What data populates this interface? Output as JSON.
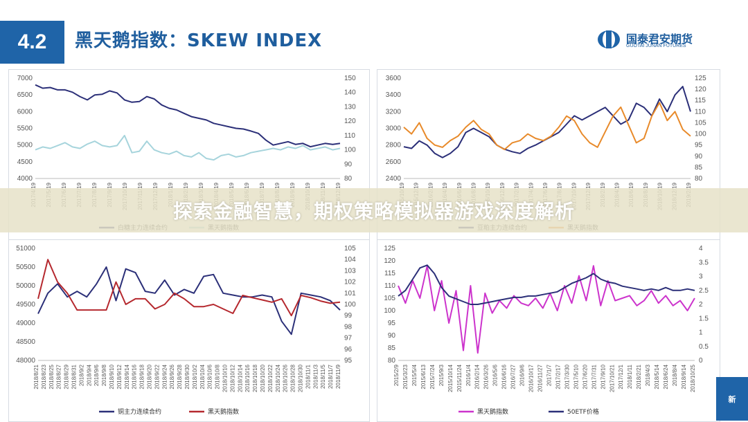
{
  "header": {
    "section_number": "4.2",
    "title": "黑天鹅指数：SKEW INDEX",
    "logo_cn": "国泰君安期货",
    "logo_en": "GUOTAI JUNAN FUTURES"
  },
  "banner": {
    "text": "探索金融智慧，期权策略模拟器游戏深度解析"
  },
  "corner": {
    "text": "新"
  },
  "colors": {
    "navy": "#2b2f78",
    "lightblue": "#a6d4dc",
    "orange": "#e88a2a",
    "red": "#b5282e",
    "magenta": "#cc33cc",
    "brand": "#1f64a8"
  },
  "chart_data": [
    {
      "type": "line",
      "y_left_ticks": [
        "7000",
        "6500",
        "6000",
        "5500",
        "5000",
        "4500",
        "4000"
      ],
      "y_right_ticks": [
        "150",
        "140",
        "130",
        "120",
        "110",
        "100",
        "90",
        "80"
      ],
      "ylim_left": [
        4000,
        7000
      ],
      "ylim_right": [
        80,
        150
      ],
      "x_labels": [
        "2017/4/19",
        "2017/5/19",
        "2017/6/19",
        "2017/7/19",
        "2017/8/19",
        "2017/9/19",
        "2017/10/19",
        "2017/11/19",
        "2017/12/19",
        "2018/1/19",
        "2018/2/19",
        "2018/3/19",
        "2018/4/19",
        "2018/5/19",
        "2018/6/19",
        "2018/7/19",
        "2018/8/19",
        "2018/9/19",
        "2018/10/19",
        "2018/11/19",
        "2018/12/19"
      ],
      "series": [
        {
          "name": "白糖主力连续合约",
          "axis": "left",
          "color": "#2b2f78",
          "values": [
            6800,
            6700,
            6720,
            6650,
            6650,
            6580,
            6450,
            6350,
            6500,
            6520,
            6620,
            6560,
            6350,
            6280,
            6300,
            6450,
            6380,
            6200,
            6100,
            6050,
            5950,
            5850,
            5800,
            5750,
            5650,
            5600,
            5550,
            5500,
            5480,
            5420,
            5350,
            5150,
            5000,
            5050,
            5100,
            5020,
            5050,
            4950,
            5000,
            5050,
            5020,
            5050
          ]
        },
        {
          "name": "黑天鹅指数",
          "axis": "right",
          "color": "#a6d4dc",
          "values": [
            100,
            102,
            101,
            103,
            105,
            102,
            101,
            104,
            106,
            103,
            102,
            103,
            110,
            98,
            99,
            106,
            100,
            98,
            97,
            99,
            96,
            95,
            98,
            94,
            93,
            96,
            97,
            95,
            96,
            98,
            99,
            100,
            101,
            100,
            102,
            101,
            103,
            100,
            101,
            102,
            100,
            101
          ]
        }
      ],
      "legend": "bottom"
    },
    {
      "type": "line",
      "y_left_ticks": [
        "3600",
        "3400",
        "3200",
        "3000",
        "2800",
        "2600",
        "2400"
      ],
      "y_right_ticks": [
        "125",
        "120",
        "115",
        "110",
        "105",
        "100",
        "95",
        "90",
        "85",
        "80"
      ],
      "ylim_left": [
        2400,
        3600
      ],
      "ylim_right": [
        80,
        125
      ],
      "x_labels": [
        "2015/10/19",
        "2015/12/19",
        "2016/2/19",
        "2016/4/19",
        "2016/6/19",
        "2016/8/19",
        "2016/10/19",
        "2016/12/19",
        "2017/2/19",
        "2017/4/19",
        "2017/6/19",
        "2017/8/19",
        "2017/10/19",
        "2017/12/19",
        "2018/2/19",
        "2018/4/19",
        "2018/6/19",
        "2018/8/19",
        "2018/10/19",
        "2018/12/19",
        "2019/2/19"
      ],
      "series": [
        {
          "name": "豆粕主力连续合约",
          "axis": "left",
          "color": "#2b2f78",
          "values": [
            2780,
            2760,
            2850,
            2800,
            2700,
            2650,
            2700,
            2780,
            2950,
            3000,
            2950,
            2900,
            2800,
            2750,
            2720,
            2700,
            2760,
            2800,
            2850,
            2900,
            2950,
            3050,
            3150,
            3100,
            3150,
            3200,
            3250,
            3150,
            3050,
            3100,
            3300,
            3250,
            3150,
            3350,
            3200,
            3400,
            3500,
            3200
          ]
        },
        {
          "name": "黑天鹅指数",
          "axis": "right",
          "color": "#e88a2a",
          "values": [
            103,
            100,
            105,
            98,
            95,
            94,
            97,
            99,
            103,
            106,
            102,
            100,
            95,
            93,
            96,
            97,
            100,
            98,
            97,
            99,
            103,
            108,
            106,
            100,
            96,
            94,
            101,
            108,
            112,
            104,
            96,
            98,
            108,
            114,
            106,
            110,
            102,
            99
          ]
        }
      ],
      "legend": "bottom"
    },
    {
      "type": "line",
      "y_left_ticks": [
        "51000",
        "50500",
        "50000",
        "49500",
        "49000",
        "48500",
        "48000"
      ],
      "y_right_ticks": [
        "105",
        "104",
        "103",
        "102",
        "101",
        "100",
        "99",
        "98",
        "97",
        "96",
        "95"
      ],
      "ylim_left": [
        48000,
        51000
      ],
      "ylim_right": [
        95,
        105
      ],
      "x_labels": [
        "2018/8/21",
        "2018/8/23",
        "2018/8/25",
        "2018/8/27",
        "2018/8/29",
        "2018/8/31",
        "2018/9/2",
        "2018/9/4",
        "2018/9/6",
        "2018/9/8",
        "2018/9/10",
        "2018/9/12",
        "2018/9/14",
        "2018/9/16",
        "2018/9/18",
        "2018/9/20",
        "2018/9/22",
        "2018/9/24",
        "2018/9/26",
        "2018/9/28",
        "2018/9/30",
        "2018/10/2",
        "2018/10/4",
        "2018/10/6",
        "2018/10/8",
        "2018/10/10",
        "2018/10/12",
        "2018/10/14",
        "2018/10/16",
        "2018/10/18",
        "2018/10/20",
        "2018/10/22",
        "2018/10/24",
        "2018/10/26",
        "2018/10/28",
        "2018/10/30",
        "2018/11/1",
        "2018/11/3",
        "2018/11/5",
        "2018/11/7",
        "2018/11/9"
      ],
      "series": [
        {
          "name": "铜主力连续合约",
          "axis": "left",
          "color": "#2b2f78",
          "values": [
            49250,
            49800,
            50050,
            49700,
            49850,
            49700,
            50050,
            50500,
            49600,
            50450,
            50350,
            49850,
            49800,
            50150,
            49750,
            49900,
            49800,
            50250,
            50300,
            49800,
            49750,
            49700,
            49700,
            49750,
            49700,
            49050,
            48700,
            49800,
            49750,
            49700,
            49600,
            49350
          ]
        },
        {
          "name": "黑天鹅指数",
          "axis": "right",
          "color": "#b5282e",
          "values": [
            100.5,
            104,
            102,
            101,
            99.5,
            99.5,
            99.5,
            99.5,
            102,
            100,
            100.5,
            100.5,
            99.6,
            100,
            101,
            100.5,
            99.8,
            99.8,
            100,
            99.6,
            99.2,
            100.8,
            100.6,
            100.4,
            100.2,
            100.5,
            99,
            100.8,
            100.6,
            100.3,
            100.1,
            100.2
          ]
        }
      ],
      "legend": "bottom"
    },
    {
      "type": "line",
      "y_left_ticks": [
        "125",
        "120",
        "115",
        "110",
        "105",
        "100",
        "95",
        "90",
        "85",
        "80"
      ],
      "y_right_ticks": [
        "4",
        "3.5",
        "3",
        "2.5",
        "2",
        "1.5",
        "1",
        "0.5",
        "0"
      ],
      "ylim_left": [
        80,
        125
      ],
      "ylim_right": [
        0,
        4
      ],
      "x_labels": [
        "2015/2/9",
        "2015/3/23",
        "2015/5/4",
        "2015/6/13",
        "2015/7/24",
        "2015/9/3",
        "2015/10/14",
        "2015/11/24",
        "2016/1/4",
        "2016/2/14",
        "2016/3/26",
        "2016/5/6",
        "2016/6/16",
        "2016/7/27",
        "2016/9/6",
        "2016/10/17",
        "2016/11/27",
        "2017/1/7",
        "2017/2/17",
        "2017/3/30",
        "2017/5/10",
        "2017/6/20",
        "2017/7/31",
        "2017/9/10",
        "2017/10/21",
        "2017/12/1",
        "2018/1/11",
        "2018/2/21",
        "2018/4/3",
        "2018/5/14",
        "2018/6/24",
        "2018/8/4",
        "2018/9/14",
        "2018/10/25"
      ],
      "series": [
        {
          "name": "黑天鹅指数",
          "axis": "left",
          "color": "#cc33cc",
          "values": [
            110,
            103,
            112,
            105,
            118,
            100,
            112,
            95,
            108,
            84,
            110,
            83,
            107,
            99,
            104,
            101,
            106,
            103,
            102,
            105,
            101,
            107,
            100,
            110,
            103,
            114,
            104,
            118,
            102,
            112,
            104,
            105,
            106,
            102,
            104,
            108,
            103,
            106,
            102,
            104,
            100,
            105
          ]
        },
        {
          "name": "50ETF价格",
          "axis": "right",
          "color": "#2b2f78",
          "values": [
            2.3,
            2.5,
            2.9,
            3.3,
            3.4,
            3.1,
            2.6,
            2.3,
            2.2,
            2.1,
            2.0,
            2.0,
            2.05,
            2.1,
            2.15,
            2.2,
            2.25,
            2.25,
            2.3,
            2.3,
            2.35,
            2.4,
            2.45,
            2.6,
            2.75,
            2.85,
            2.95,
            3.1,
            2.9,
            2.8,
            2.75,
            2.65,
            2.6,
            2.55,
            2.5,
            2.55,
            2.5,
            2.6,
            2.5,
            2.5,
            2.55,
            2.5
          ]
        }
      ],
      "legend": "bottom"
    }
  ]
}
